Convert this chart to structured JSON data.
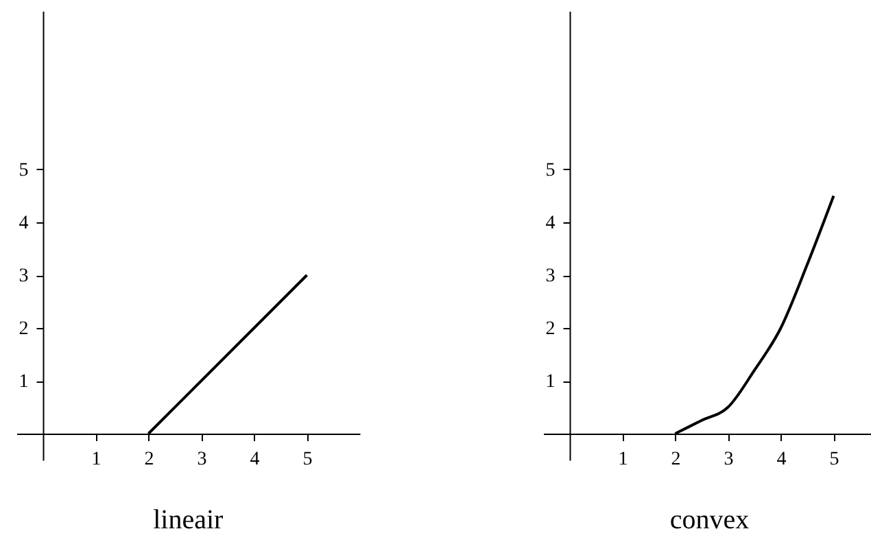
{
  "chart_data": [
    {
      "type": "line",
      "title": "lineair",
      "x": [
        2,
        5
      ],
      "values": [
        0,
        3
      ],
      "color": "#000000",
      "xlim": [
        -0.5,
        6
      ],
      "ylim": [
        -0.5,
        8
      ],
      "xticks": [
        1,
        2,
        3,
        4,
        5
      ],
      "yticks": [
        1,
        2,
        3,
        4,
        5
      ]
    },
    {
      "type": "line",
      "title": "convex",
      "x": [
        2,
        2.5,
        3,
        3.5,
        4,
        4.5,
        5
      ],
      "values": [
        0,
        0.25,
        0.5,
        1.2,
        2,
        3.2,
        4.5
      ],
      "color": "#000000",
      "xlim": [
        -0.5,
        5.8
      ],
      "ylim": [
        -0.5,
        8
      ],
      "xticks": [
        1,
        2,
        3,
        4,
        5
      ],
      "yticks": [
        1,
        2,
        3,
        4,
        5
      ]
    }
  ]
}
